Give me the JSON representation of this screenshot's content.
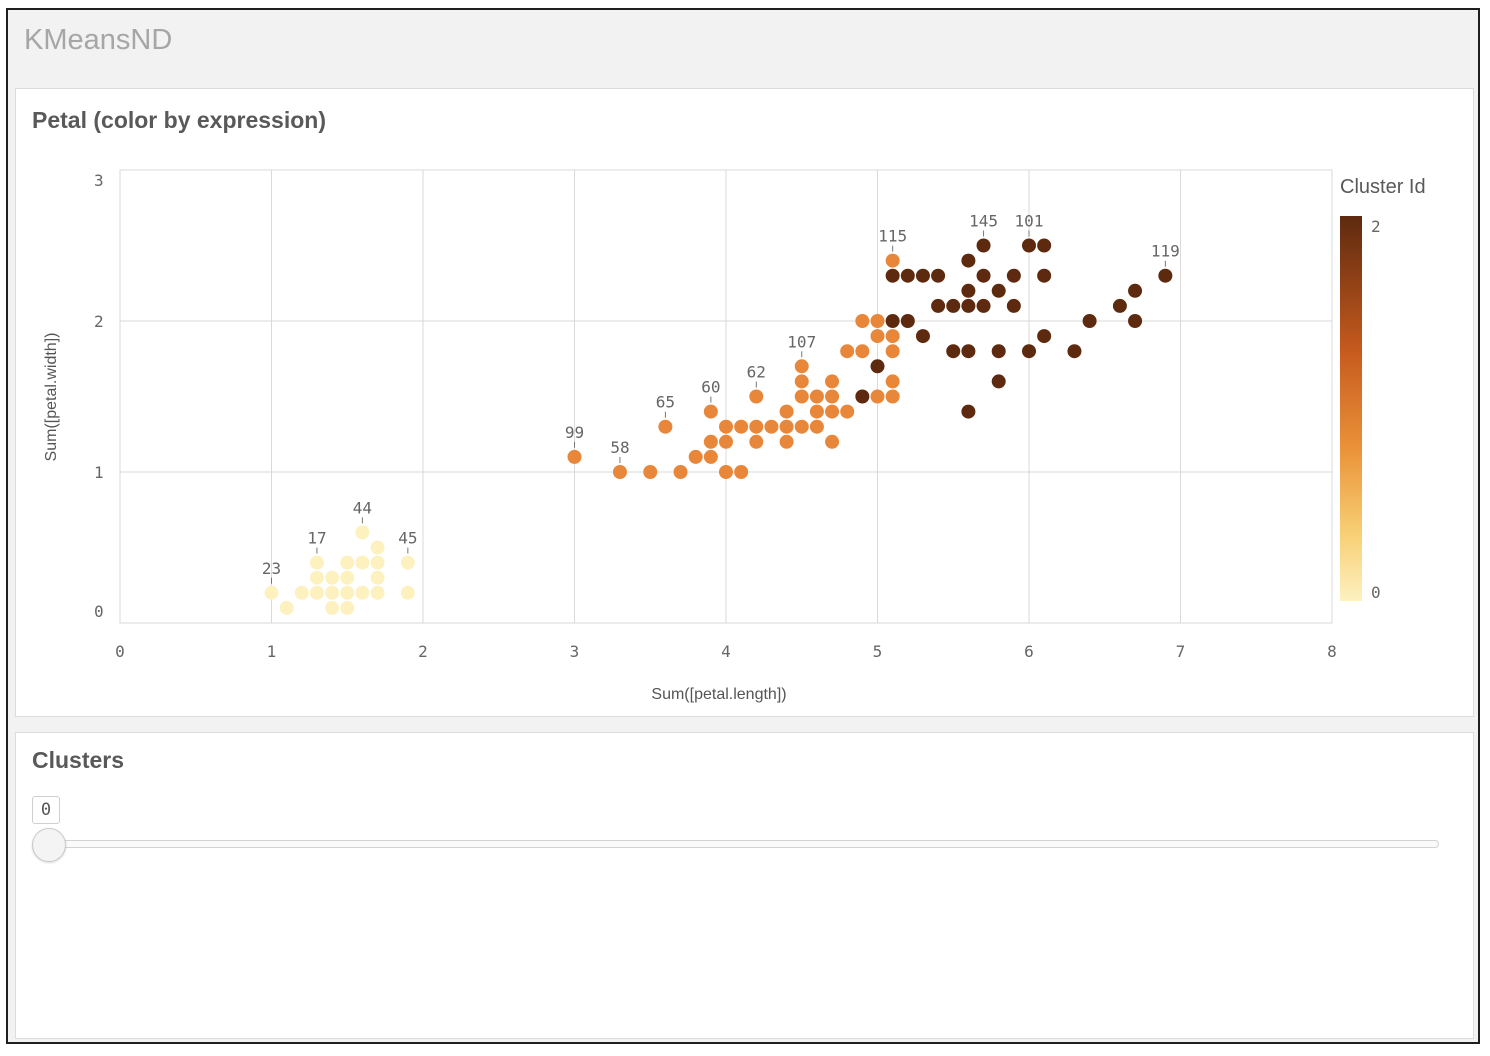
{
  "app": {
    "title": "KMeansND"
  },
  "chart_panel": {
    "title": "Petal (color by expression)"
  },
  "clusters_panel": {
    "title": "Clusters",
    "value": "0",
    "slider_value": 0
  },
  "chart_data": {
    "type": "scatter",
    "xlabel": "Sum([petal.length])",
    "ylabel": "Sum([petal.width])",
    "xlim": [
      0,
      8
    ],
    "ylim": [
      0,
      3
    ],
    "x_ticks": [
      "0",
      "1",
      "2",
      "3",
      "4",
      "5",
      "6",
      "7",
      "8"
    ],
    "y_ticks": [
      "0",
      "1",
      "2",
      "3"
    ],
    "grid": true,
    "legend": {
      "title": "Cluster Id",
      "max_label": "2",
      "min_label": "0",
      "placement": "right"
    },
    "colors": {
      "0": "#fdf1c0",
      "1": "#e8873a",
      "2": "#5e2a0f"
    },
    "points": [
      {
        "x": 1.0,
        "y": 0.2,
        "c": 0,
        "label": "23"
      },
      {
        "x": 1.1,
        "y": 0.1,
        "c": 0
      },
      {
        "x": 1.2,
        "y": 0.2,
        "c": 0
      },
      {
        "x": 1.3,
        "y": 0.2,
        "c": 0
      },
      {
        "x": 1.3,
        "y": 0.3,
        "c": 0
      },
      {
        "x": 1.3,
        "y": 0.4,
        "c": 0,
        "label": "17"
      },
      {
        "x": 1.4,
        "y": 0.1,
        "c": 0
      },
      {
        "x": 1.4,
        "y": 0.2,
        "c": 0
      },
      {
        "x": 1.4,
        "y": 0.3,
        "c": 0
      },
      {
        "x": 1.5,
        "y": 0.1,
        "c": 0
      },
      {
        "x": 1.5,
        "y": 0.2,
        "c": 0
      },
      {
        "x": 1.5,
        "y": 0.3,
        "c": 0
      },
      {
        "x": 1.5,
        "y": 0.4,
        "c": 0
      },
      {
        "x": 1.6,
        "y": 0.2,
        "c": 0
      },
      {
        "x": 1.6,
        "y": 0.4,
        "c": 0
      },
      {
        "x": 1.6,
        "y": 0.6,
        "c": 0,
        "label": "44"
      },
      {
        "x": 1.7,
        "y": 0.2,
        "c": 0
      },
      {
        "x": 1.7,
        "y": 0.3,
        "c": 0
      },
      {
        "x": 1.7,
        "y": 0.4,
        "c": 0
      },
      {
        "x": 1.7,
        "y": 0.5,
        "c": 0
      },
      {
        "x": 1.9,
        "y": 0.2,
        "c": 0
      },
      {
        "x": 1.9,
        "y": 0.4,
        "c": 0,
        "label": "45"
      },
      {
        "x": 3.0,
        "y": 1.1,
        "c": 1,
        "label": "99"
      },
      {
        "x": 3.3,
        "y": 1.0,
        "c": 1,
        "label": "58"
      },
      {
        "x": 3.5,
        "y": 1.0,
        "c": 1
      },
      {
        "x": 3.6,
        "y": 1.3,
        "c": 1,
        "label": "65"
      },
      {
        "x": 3.7,
        "y": 1.0,
        "c": 1
      },
      {
        "x": 3.8,
        "y": 1.1,
        "c": 1
      },
      {
        "x": 3.9,
        "y": 1.1,
        "c": 1
      },
      {
        "x": 3.9,
        "y": 1.2,
        "c": 1
      },
      {
        "x": 3.9,
        "y": 1.4,
        "c": 1,
        "label": "60"
      },
      {
        "x": 4.0,
        "y": 1.0,
        "c": 1
      },
      {
        "x": 4.0,
        "y": 1.2,
        "c": 1
      },
      {
        "x": 4.0,
        "y": 1.3,
        "c": 1
      },
      {
        "x": 4.1,
        "y": 1.0,
        "c": 1
      },
      {
        "x": 4.1,
        "y": 1.3,
        "c": 1
      },
      {
        "x": 4.2,
        "y": 1.2,
        "c": 1
      },
      {
        "x": 4.2,
        "y": 1.3,
        "c": 1
      },
      {
        "x": 4.2,
        "y": 1.5,
        "c": 1,
        "label": "62"
      },
      {
        "x": 4.3,
        "y": 1.3,
        "c": 1
      },
      {
        "x": 4.4,
        "y": 1.2,
        "c": 1
      },
      {
        "x": 4.4,
        "y": 1.3,
        "c": 1
      },
      {
        "x": 4.4,
        "y": 1.4,
        "c": 1
      },
      {
        "x": 4.5,
        "y": 1.3,
        "c": 1
      },
      {
        "x": 4.5,
        "y": 1.5,
        "c": 1
      },
      {
        "x": 4.5,
        "y": 1.6,
        "c": 1
      },
      {
        "x": 4.5,
        "y": 1.7,
        "c": 1,
        "label": "107"
      },
      {
        "x": 4.6,
        "y": 1.3,
        "c": 1
      },
      {
        "x": 4.6,
        "y": 1.4,
        "c": 1
      },
      {
        "x": 4.6,
        "y": 1.5,
        "c": 1
      },
      {
        "x": 4.7,
        "y": 1.2,
        "c": 1
      },
      {
        "x": 4.7,
        "y": 1.4,
        "c": 1
      },
      {
        "x": 4.7,
        "y": 1.5,
        "c": 1
      },
      {
        "x": 4.7,
        "y": 1.6,
        "c": 1
      },
      {
        "x": 4.8,
        "y": 1.4,
        "c": 1
      },
      {
        "x": 4.8,
        "y": 1.8,
        "c": 1
      },
      {
        "x": 4.9,
        "y": 1.8,
        "c": 1
      },
      {
        "x": 4.9,
        "y": 2.0,
        "c": 1
      },
      {
        "x": 5.0,
        "y": 1.5,
        "c": 1
      },
      {
        "x": 5.0,
        "y": 1.9,
        "c": 1
      },
      {
        "x": 5.0,
        "y": 2.0,
        "c": 1
      },
      {
        "x": 5.1,
        "y": 1.5,
        "c": 1
      },
      {
        "x": 5.1,
        "y": 1.6,
        "c": 1
      },
      {
        "x": 5.1,
        "y": 1.8,
        "c": 1
      },
      {
        "x": 5.1,
        "y": 1.9,
        "c": 1
      },
      {
        "x": 5.1,
        "y": 2.4,
        "c": 1,
        "label": "115"
      },
      {
        "x": 4.9,
        "y": 1.5,
        "c": 2
      },
      {
        "x": 5.0,
        "y": 1.7,
        "c": 2
      },
      {
        "x": 5.1,
        "y": 2.0,
        "c": 2
      },
      {
        "x": 5.1,
        "y": 2.3,
        "c": 2
      },
      {
        "x": 5.2,
        "y": 2.0,
        "c": 2
      },
      {
        "x": 5.2,
        "y": 2.3,
        "c": 2
      },
      {
        "x": 5.3,
        "y": 1.9,
        "c": 2
      },
      {
        "x": 5.3,
        "y": 2.3,
        "c": 2
      },
      {
        "x": 5.4,
        "y": 2.1,
        "c": 2
      },
      {
        "x": 5.4,
        "y": 2.3,
        "c": 2
      },
      {
        "x": 5.5,
        "y": 1.8,
        "c": 2
      },
      {
        "x": 5.5,
        "y": 2.1,
        "c": 2
      },
      {
        "x": 5.6,
        "y": 1.4,
        "c": 2
      },
      {
        "x": 5.6,
        "y": 1.8,
        "c": 2
      },
      {
        "x": 5.6,
        "y": 2.1,
        "c": 2
      },
      {
        "x": 5.6,
        "y": 2.2,
        "c": 2
      },
      {
        "x": 5.6,
        "y": 2.4,
        "c": 2
      },
      {
        "x": 5.7,
        "y": 2.1,
        "c": 2
      },
      {
        "x": 5.7,
        "y": 2.3,
        "c": 2
      },
      {
        "x": 5.7,
        "y": 2.5,
        "c": 2,
        "label": "145"
      },
      {
        "x": 5.8,
        "y": 1.6,
        "c": 2
      },
      {
        "x": 5.8,
        "y": 1.8,
        "c": 2
      },
      {
        "x": 5.8,
        "y": 2.2,
        "c": 2
      },
      {
        "x": 5.9,
        "y": 2.1,
        "c": 2
      },
      {
        "x": 5.9,
        "y": 2.3,
        "c": 2
      },
      {
        "x": 6.0,
        "y": 1.8,
        "c": 2
      },
      {
        "x": 6.0,
        "y": 2.5,
        "c": 2,
        "label": "101"
      },
      {
        "x": 6.1,
        "y": 1.9,
        "c": 2
      },
      {
        "x": 6.1,
        "y": 2.3,
        "c": 2
      },
      {
        "x": 6.1,
        "y": 2.5,
        "c": 2
      },
      {
        "x": 6.3,
        "y": 1.8,
        "c": 2
      },
      {
        "x": 6.4,
        "y": 2.0,
        "c": 2
      },
      {
        "x": 6.6,
        "y": 2.1,
        "c": 2
      },
      {
        "x": 6.7,
        "y": 2.0,
        "c": 2
      },
      {
        "x": 6.7,
        "y": 2.2,
        "c": 2
      },
      {
        "x": 6.9,
        "y": 2.3,
        "c": 2,
        "label": "119"
      }
    ]
  }
}
